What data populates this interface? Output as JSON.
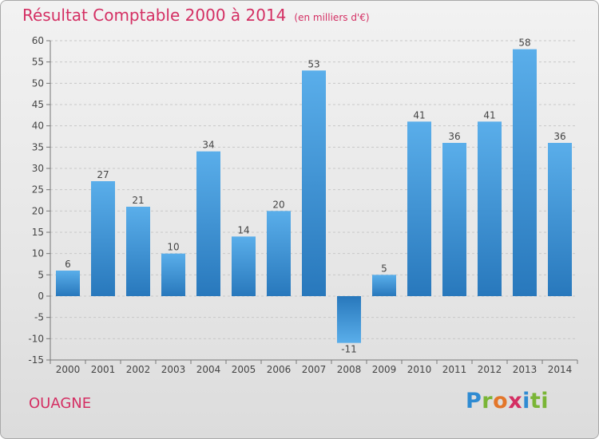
{
  "header": {
    "title": "Résultat Comptable 2000 à 2014",
    "unit": "(en milliers d'€)"
  },
  "commune": "OUAGNE",
  "logo": {
    "letters": [
      "P",
      "r",
      "o",
      "x",
      "i",
      "ti"
    ]
  },
  "colors": {
    "title": "#d42f63",
    "bar_light": "#5aaeea",
    "bar_dark": "#2878bc",
    "axis": "#777777",
    "grid": "#c8c8c8"
  },
  "chart_data": {
    "type": "bar",
    "title": "Résultat Comptable 2000 à 2014",
    "xlabel": "",
    "ylabel": "(en milliers d'€)",
    "categories": [
      "2000",
      "2001",
      "2002",
      "2003",
      "2004",
      "2005",
      "2006",
      "2007",
      "2008",
      "2009",
      "2010",
      "2011",
      "2012",
      "2013",
      "2014"
    ],
    "values": [
      6,
      27,
      21,
      10,
      34,
      14,
      20,
      53,
      -11,
      5,
      41,
      36,
      41,
      58,
      36
    ],
    "labels": [
      "6",
      "27",
      "21",
      "10",
      "34",
      "14",
      "20",
      "53",
      "-11",
      "5",
      "41",
      "36",
      "41",
      "58",
      "36"
    ],
    "ylim": [
      -15,
      60
    ],
    "yticks": [
      -15,
      -10,
      -5,
      0,
      5,
      10,
      15,
      20,
      25,
      30,
      35,
      40,
      45,
      50,
      55,
      60
    ],
    "ytick_labels": [
      "-15",
      "-10",
      "-5",
      "0",
      "5",
      "10",
      "15",
      "20",
      "25",
      "30",
      "35",
      "40",
      "45",
      "50",
      "55",
      "60"
    ],
    "grid": true
  }
}
